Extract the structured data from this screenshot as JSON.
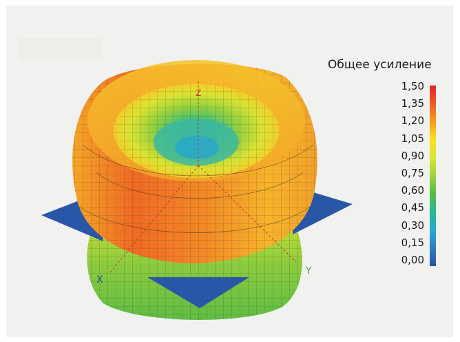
{
  "legend": {
    "title": "Общее усиление",
    "ticks": [
      "1,50",
      "1,35",
      "1,20",
      "1,05",
      "0,90",
      "0,75",
      "0,60",
      "0,45",
      "0,30",
      "0,15",
      "0,00"
    ]
  },
  "axes": {
    "x": "X",
    "y": "Y",
    "z": "Z"
  },
  "colors": {
    "frame": "#f1f1f0",
    "ground_plane": "#2a56a8",
    "max": "#e3242b",
    "min": "#2b4fa6"
  }
}
